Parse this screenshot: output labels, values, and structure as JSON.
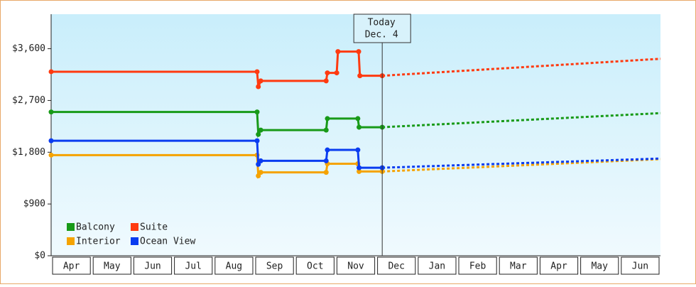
{
  "chart_data": {
    "type": "line",
    "categories": [
      "Apr",
      "May",
      "Jun",
      "Jul",
      "Aug",
      "Sep",
      "Oct",
      "Nov",
      "Dec",
      "Jan",
      "Feb",
      "Mar",
      "Apr",
      "May",
      "Jun"
    ],
    "xlim": [
      0,
      15
    ],
    "ylim": [
      0,
      4200
    ],
    "yticks": [
      {
        "value": 0,
        "label": "$0"
      },
      {
        "value": 900,
        "label": "$900"
      },
      {
        "value": 1800,
        "label": "$1,800"
      },
      {
        "value": 2700,
        "label": "$2,700"
      },
      {
        "value": 3600,
        "label": "$3,600"
      }
    ],
    "today": {
      "x": 8.15,
      "label": "Today",
      "date": "Dec. 4"
    },
    "legend": "lower left",
    "series": [
      {
        "name": "Balcony",
        "color": "#189a18",
        "x": [
          0,
          5.07,
          5.1,
          5.16,
          6.77,
          6.8,
          7.55,
          7.58,
          8.15
        ],
        "values": [
          2500,
          2500,
          2110,
          2185,
          2185,
          2385,
          2385,
          2235,
          2235
        ],
        "forecast": {
          "x": [
            8.15,
            15
          ],
          "values": [
            2235,
            2480
          ]
        }
      },
      {
        "name": "Suite",
        "color": "#ff3a10",
        "x": [
          0,
          5.07,
          5.1,
          5.16,
          6.77,
          6.8,
          7.03,
          7.06,
          7.57,
          7.6,
          8.15
        ],
        "values": [
          3200,
          3200,
          2940,
          3040,
          3040,
          3180,
          3180,
          3550,
          3550,
          3130,
          3130
        ],
        "forecast": {
          "x": [
            8.15,
            15
          ],
          "values": [
            3130,
            3425
          ]
        }
      },
      {
        "name": "Interior",
        "color": "#f5a300",
        "x": [
          0,
          5.07,
          5.1,
          5.16,
          6.77,
          6.8,
          7.55,
          7.58,
          8.15
        ],
        "values": [
          1750,
          1750,
          1390,
          1450,
          1450,
          1600,
          1600,
          1465,
          1465
        ],
        "forecast": {
          "x": [
            8.15,
            15
          ],
          "values": [
            1465,
            1680
          ]
        }
      },
      {
        "name": "Ocean View",
        "color": "#0a3cf0",
        "x": [
          0,
          5.07,
          5.1,
          5.16,
          6.77,
          6.8,
          7.55,
          7.58,
          8.15
        ],
        "values": [
          2000,
          2000,
          1590,
          1650,
          1650,
          1840,
          1840,
          1530,
          1530
        ],
        "forecast": {
          "x": [
            8.15,
            15
          ],
          "values": [
            1530,
            1690
          ]
        }
      }
    ]
  }
}
